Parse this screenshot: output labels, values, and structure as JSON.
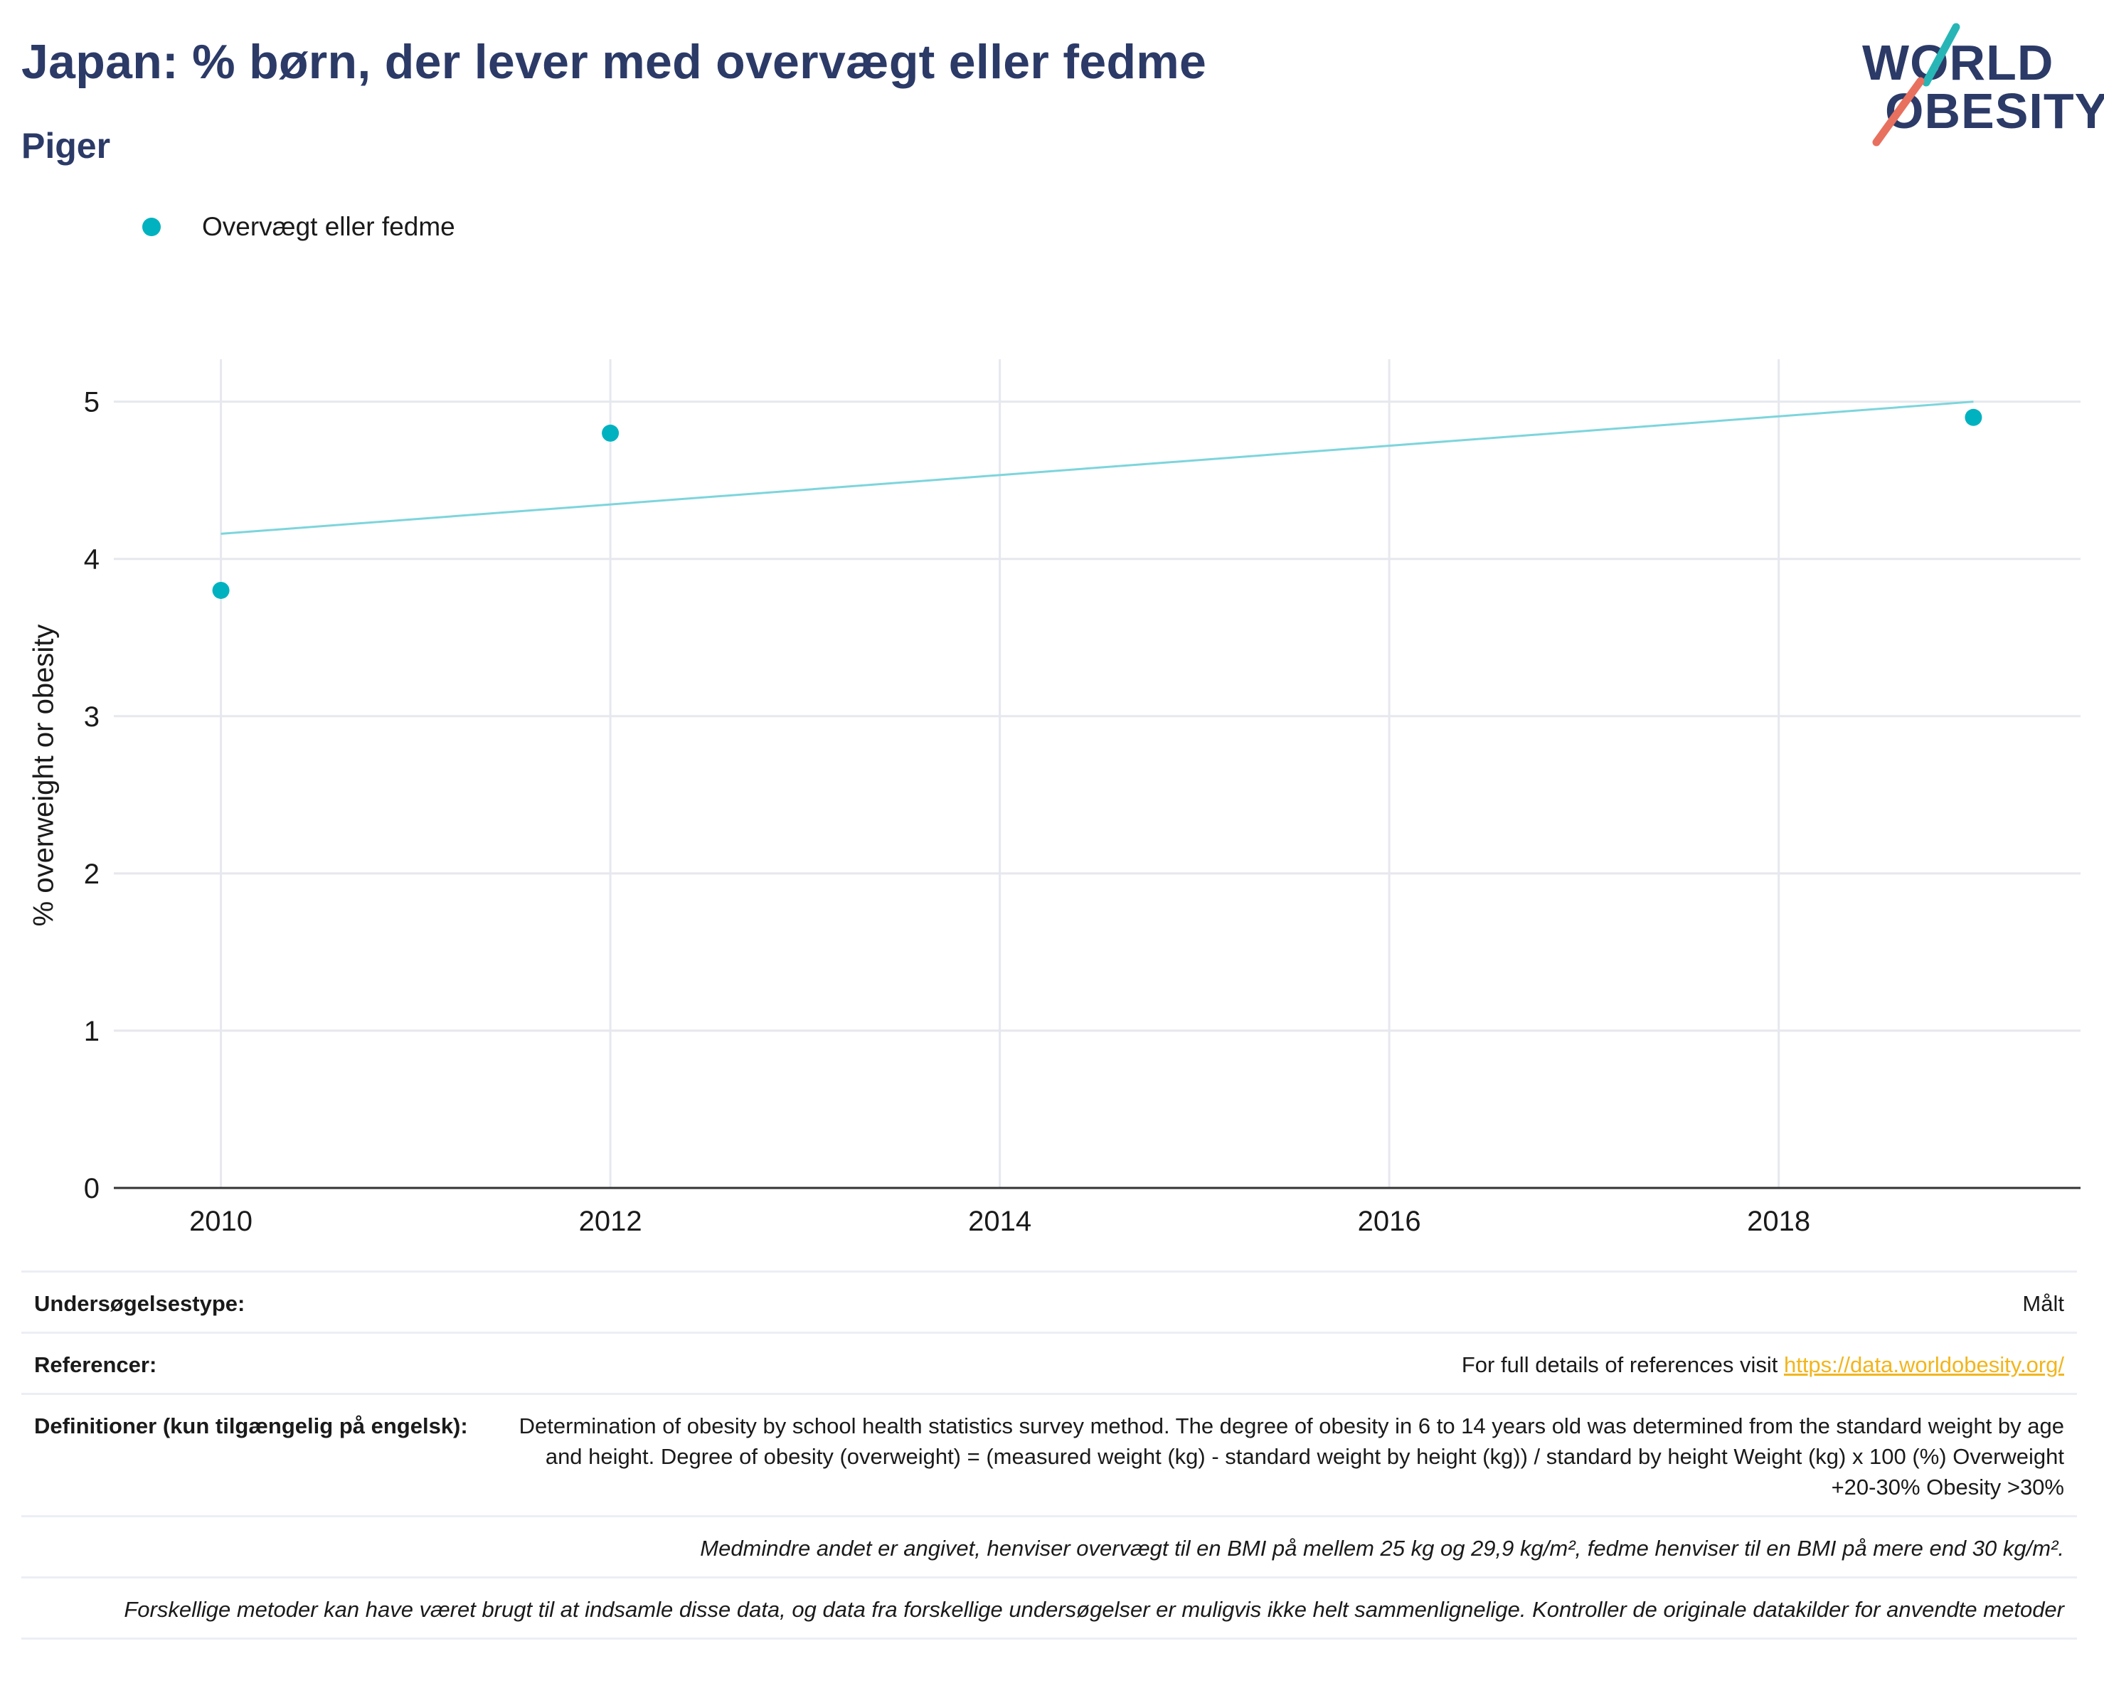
{
  "header": {
    "title": "Japan: % børn, der lever med overvægt eller fedme",
    "subtitle": "Piger"
  },
  "logo": {
    "line1": "WORLD",
    "line2": "OBESITY",
    "colors": {
      "text": "#2b3a67",
      "teal": "#27b6b5",
      "coral": "#e8705f"
    }
  },
  "legend": {
    "label": "Overvægt eller fedme",
    "color": "#00b2bf"
  },
  "chart_data": {
    "type": "scatter",
    "x": [
      2010,
      2012,
      2019
    ],
    "series": [
      {
        "name": "Overvægt eller fedme",
        "values": [
          3.8,
          4.8,
          4.9
        ],
        "color": "#00b2bf"
      }
    ],
    "trendline": {
      "x": [
        2010,
        2019
      ],
      "y": [
        4.16,
        5.0
      ],
      "color": "#7dd5dc"
    },
    "xlabel": "",
    "ylabel": "% overweight or obesity",
    "xticks": [
      2010,
      2012,
      2014,
      2016,
      2018
    ],
    "yticks": [
      0,
      1,
      2,
      3,
      4,
      5
    ],
    "xlim": [
      2009.45,
      2019.55
    ],
    "ylim": [
      0,
      5.27
    ],
    "grid": true
  },
  "info": {
    "survey_type_label": "Undersøgelsestype:",
    "survey_type_value": "Målt",
    "references_label": "Referencer:",
    "references_text": "For full details of references visit ",
    "references_link": "https://data.worldobesity.org/",
    "definitions_label": "Definitioner (kun tilgængelig på engelsk):",
    "definitions_value": "Determination of obesity by school health statistics survey method. The degree of obesity in 6 to 14 years old was determined from the standard weight by age and height. Degree of obesity (overweight) = (measured weight (kg) - standard weight by height (kg)) / standard by height Weight (kg) x 100 (%) Overweight +20-30% Obesity >30%",
    "note_bmi": "Medmindre andet er angivet, henviser overvægt til en BMI på mellem 25 kg og 29,9 kg/m², fedme henviser til en BMI på mere end 30 kg/m².",
    "note_methods": "Forskellige metoder kan have været brugt til at indsamle disse data, og data fra forskellige undersøgelser er muligvis ikke helt sammenlignelige. Kontroller de originale datakilder for anvendte metoder"
  }
}
